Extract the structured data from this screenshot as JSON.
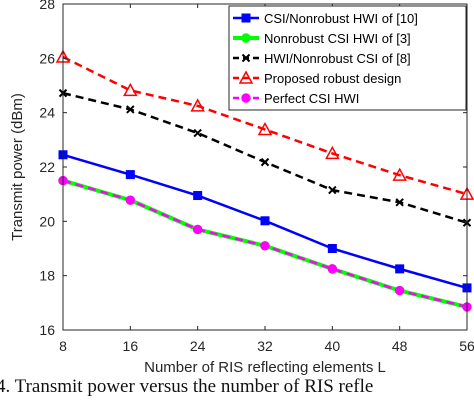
{
  "chart_data": {
    "type": "line",
    "xlabel": "Number of RIS reflecting elements L",
    "ylabel": "Transmit power (dBm)",
    "x": [
      8,
      16,
      24,
      32,
      40,
      48,
      56
    ],
    "xlim": [
      8,
      56
    ],
    "ylim": [
      16,
      28
    ],
    "xticks": [
      "8",
      "16",
      "24",
      "32",
      "40",
      "48",
      "56"
    ],
    "yticks": [
      "16",
      "18",
      "20",
      "22",
      "24",
      "26",
      "28"
    ],
    "grid": false,
    "legend_position": "top-right",
    "series": [
      {
        "name": "CSI/Nonrobust HWI of [10]",
        "values": [
          22.45,
          21.72,
          20.95,
          20.02,
          19.0,
          18.25,
          17.55
        ],
        "color": "#0000ff",
        "marker": "square",
        "dash": "solid"
      },
      {
        "name": "Nonrobust CSI HWI of [3]",
        "values": [
          21.5,
          20.78,
          19.7,
          19.1,
          18.25,
          17.45,
          16.85
        ],
        "color": "#00ff00",
        "marker": "circle",
        "dash": "solid"
      },
      {
        "name": "HWI/Nonrobust CSI of [8]",
        "values": [
          24.72,
          24.12,
          23.25,
          22.18,
          21.15,
          20.7,
          19.95
        ],
        "color": "#000000",
        "marker": "x",
        "dash": "dashed"
      },
      {
        "name": "Proposed robust design",
        "values": [
          26.05,
          24.82,
          24.25,
          23.38,
          22.5,
          21.7,
          21.0
        ],
        "color": "#ff0000",
        "marker": "triangle",
        "dash": "dashed"
      },
      {
        "name": "Perfect CSI HWI",
        "values": [
          21.5,
          20.78,
          19.7,
          19.1,
          18.25,
          17.45,
          16.85
        ],
        "color": "#ff00ff",
        "marker": "circle",
        "dash": "dashed"
      }
    ]
  },
  "caption": "4. Transmit power versus the number of RIS refle"
}
